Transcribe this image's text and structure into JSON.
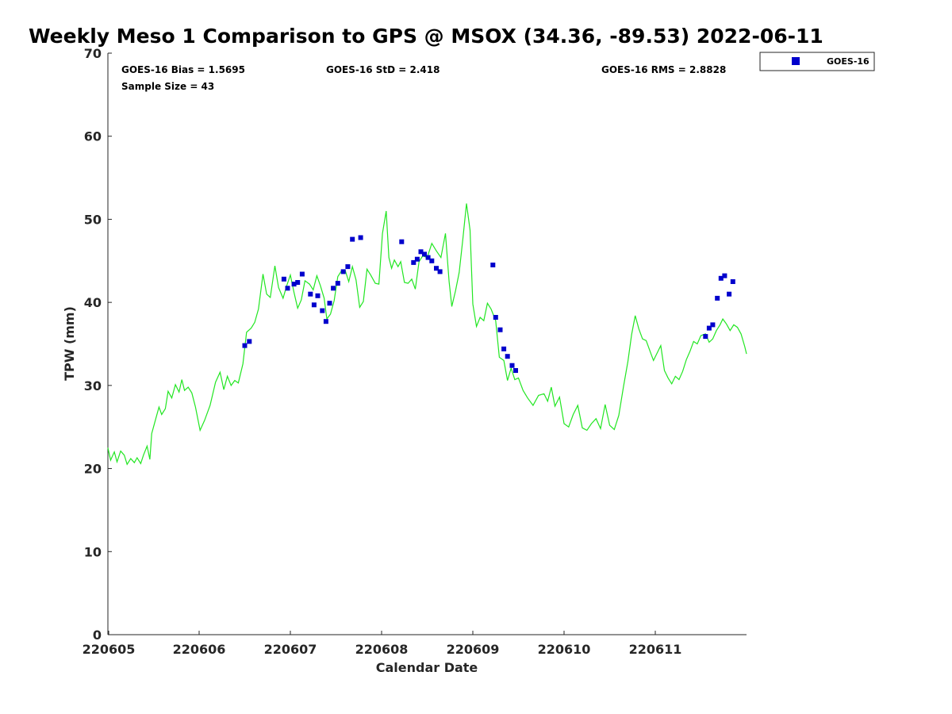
{
  "chart_data": {
    "type": "scatter",
    "title": "Weekly Meso 1 Comparison to GPS @ MSOX (34.36, -89.53) 2022-06-11",
    "xlabel": "Calendar Date",
    "ylabel": "TPW (mm)",
    "xlim": [
      "220605",
      "220612"
    ],
    "ylim": [
      0,
      70
    ],
    "x_ticks": [
      "220605",
      "220606",
      "220607",
      "220608",
      "220609",
      "220610",
      "220611"
    ],
    "y_ticks": [
      0,
      10,
      20,
      30,
      40,
      50,
      60,
      70
    ],
    "grid": false,
    "legend_position": "top-right (outside plot)",
    "stats": {
      "bias": "GOES-16 Bias = 1.5695",
      "std": "GOES-16 StD = 2.418",
      "rms": "GOES-16 RMS = 2.8828",
      "sample_size": "Sample Size = 43"
    },
    "legend": [
      {
        "label": "GOES-16",
        "marker": "square",
        "color": "#0000cc"
      }
    ],
    "line_color": "#22e622",
    "series": [
      {
        "name": "GOES-16",
        "kind": "points",
        "color": "#0000cc",
        "points": [
          [
            1.5,
            34.8
          ],
          [
            1.55,
            35.3
          ],
          [
            1.93,
            42.8
          ],
          [
            1.97,
            41.7
          ],
          [
            2.04,
            42.2
          ],
          [
            2.08,
            42.4
          ],
          [
            2.13,
            43.4
          ],
          [
            2.22,
            41.0
          ],
          [
            2.26,
            39.7
          ],
          [
            2.3,
            40.8
          ],
          [
            2.35,
            39.0
          ],
          [
            2.39,
            37.7
          ],
          [
            2.43,
            39.9
          ],
          [
            2.47,
            41.7
          ],
          [
            2.52,
            42.3
          ],
          [
            2.58,
            43.7
          ],
          [
            2.63,
            44.3
          ],
          [
            2.68,
            47.6
          ],
          [
            2.77,
            47.8
          ],
          [
            3.22,
            47.3
          ],
          [
            3.35,
            44.8
          ],
          [
            3.39,
            45.2
          ],
          [
            3.43,
            46.1
          ],
          [
            3.47,
            45.8
          ],
          [
            3.51,
            45.4
          ],
          [
            3.55,
            45.0
          ],
          [
            3.6,
            44.1
          ],
          [
            3.64,
            43.7
          ],
          [
            4.22,
            44.5
          ],
          [
            4.25,
            38.2
          ],
          [
            4.3,
            36.7
          ],
          [
            4.34,
            34.4
          ],
          [
            4.38,
            33.5
          ],
          [
            4.43,
            32.4
          ],
          [
            4.47,
            31.8
          ],
          [
            6.55,
            35.9
          ],
          [
            6.59,
            36.9
          ],
          [
            6.63,
            37.3
          ],
          [
            6.68,
            40.5
          ],
          [
            6.72,
            42.9
          ],
          [
            6.76,
            43.2
          ],
          [
            6.81,
            41.0
          ],
          [
            6.85,
            42.5
          ]
        ]
      },
      {
        "name": "GPS",
        "kind": "line",
        "color": "#22e622",
        "points": [
          [
            0.0,
            22.5
          ],
          [
            0.03,
            21.0
          ],
          [
            0.07,
            22.0
          ],
          [
            0.1,
            20.8
          ],
          [
            0.14,
            22.1
          ],
          [
            0.18,
            21.6
          ],
          [
            0.21,
            20.5
          ],
          [
            0.25,
            21.2
          ],
          [
            0.29,
            20.7
          ],
          [
            0.32,
            21.3
          ],
          [
            0.36,
            20.6
          ],
          [
            0.39,
            21.6
          ],
          [
            0.43,
            22.7
          ],
          [
            0.46,
            21.1
          ],
          [
            0.48,
            24.2
          ],
          [
            0.52,
            25.8
          ],
          [
            0.56,
            27.4
          ],
          [
            0.59,
            26.5
          ],
          [
            0.63,
            27.2
          ],
          [
            0.66,
            29.3
          ],
          [
            0.7,
            28.5
          ],
          [
            0.74,
            30.1
          ],
          [
            0.78,
            29.2
          ],
          [
            0.81,
            30.7
          ],
          [
            0.84,
            29.4
          ],
          [
            0.88,
            29.8
          ],
          [
            0.92,
            29.1
          ],
          [
            0.96,
            27.4
          ],
          [
            1.01,
            24.6
          ],
          [
            1.06,
            25.8
          ],
          [
            1.12,
            27.6
          ],
          [
            1.18,
            30.4
          ],
          [
            1.23,
            31.6
          ],
          [
            1.27,
            29.5
          ],
          [
            1.31,
            31.1
          ],
          [
            1.35,
            30.0
          ],
          [
            1.39,
            30.6
          ],
          [
            1.43,
            30.3
          ],
          [
            1.48,
            32.6
          ],
          [
            1.52,
            36.4
          ],
          [
            1.57,
            36.9
          ],
          [
            1.61,
            37.6
          ],
          [
            1.65,
            39.2
          ],
          [
            1.7,
            43.4
          ],
          [
            1.74,
            41.0
          ],
          [
            1.78,
            40.6
          ],
          [
            1.83,
            44.4
          ],
          [
            1.87,
            41.8
          ],
          [
            1.92,
            40.5
          ],
          [
            1.96,
            42.0
          ],
          [
            2.0,
            43.3
          ],
          [
            2.04,
            41.2
          ],
          [
            2.08,
            39.3
          ],
          [
            2.12,
            40.3
          ],
          [
            2.16,
            42.6
          ],
          [
            2.21,
            42.2
          ],
          [
            2.25,
            41.5
          ],
          [
            2.29,
            43.2
          ],
          [
            2.33,
            42.0
          ],
          [
            2.37,
            40.5
          ],
          [
            2.4,
            38.0
          ],
          [
            2.44,
            38.6
          ],
          [
            2.48,
            40.2
          ],
          [
            2.52,
            43.1
          ],
          [
            2.56,
            43.8
          ],
          [
            2.6,
            43.9
          ],
          [
            2.64,
            42.5
          ],
          [
            2.68,
            44.3
          ],
          [
            2.72,
            42.7
          ],
          [
            2.76,
            39.4
          ],
          [
            2.8,
            40.1
          ],
          [
            2.84,
            44.0
          ],
          [
            2.88,
            43.3
          ],
          [
            2.93,
            42.3
          ],
          [
            2.97,
            42.2
          ],
          [
            3.01,
            48.3
          ],
          [
            3.05,
            51.0
          ],
          [
            3.08,
            45.4
          ],
          [
            3.11,
            44.1
          ],
          [
            3.14,
            45.1
          ],
          [
            3.18,
            44.3
          ],
          [
            3.21,
            44.9
          ],
          [
            3.25,
            42.4
          ],
          [
            3.29,
            42.3
          ],
          [
            3.33,
            42.8
          ],
          [
            3.37,
            41.6
          ],
          [
            3.41,
            44.9
          ],
          [
            3.45,
            45.6
          ],
          [
            3.5,
            45.4
          ],
          [
            3.55,
            47.1
          ],
          [
            3.6,
            46.2
          ],
          [
            3.65,
            45.4
          ],
          [
            3.7,
            48.3
          ],
          [
            3.74,
            42.5
          ],
          [
            3.77,
            39.5
          ],
          [
            3.81,
            41.4
          ],
          [
            3.85,
            43.6
          ],
          [
            3.89,
            47.6
          ],
          [
            3.93,
            51.9
          ],
          [
            3.97,
            48.7
          ],
          [
            4.0,
            39.8
          ],
          [
            4.04,
            37.1
          ],
          [
            4.08,
            38.2
          ],
          [
            4.12,
            37.8
          ],
          [
            4.16,
            39.9
          ],
          [
            4.2,
            39.2
          ],
          [
            4.25,
            37.8
          ],
          [
            4.29,
            33.4
          ],
          [
            4.34,
            33.0
          ],
          [
            4.38,
            30.6
          ],
          [
            4.42,
            32.1
          ],
          [
            4.46,
            30.7
          ],
          [
            4.5,
            30.9
          ],
          [
            4.55,
            29.4
          ],
          [
            4.6,
            28.5
          ],
          [
            4.66,
            27.6
          ],
          [
            4.72,
            28.8
          ],
          [
            4.78,
            29.0
          ],
          [
            4.82,
            28.1
          ],
          [
            4.86,
            29.8
          ],
          [
            4.9,
            27.5
          ],
          [
            4.95,
            28.6
          ],
          [
            5.0,
            25.4
          ],
          [
            5.05,
            25.0
          ],
          [
            5.1,
            26.5
          ],
          [
            5.15,
            27.6
          ],
          [
            5.2,
            24.9
          ],
          [
            5.25,
            24.6
          ],
          [
            5.3,
            25.4
          ],
          [
            5.35,
            26.0
          ],
          [
            5.4,
            24.8
          ],
          [
            5.45,
            27.7
          ],
          [
            5.5,
            25.2
          ],
          [
            5.55,
            24.7
          ],
          [
            5.6,
            26.4
          ],
          [
            5.65,
            29.8
          ],
          [
            5.7,
            32.9
          ],
          [
            5.74,
            36.1
          ],
          [
            5.78,
            38.4
          ],
          [
            5.82,
            36.8
          ],
          [
            5.86,
            35.6
          ],
          [
            5.9,
            35.4
          ],
          [
            5.94,
            34.2
          ],
          [
            5.98,
            33.0
          ],
          [
            6.02,
            33.9
          ],
          [
            6.06,
            34.8
          ],
          [
            6.1,
            31.8
          ],
          [
            6.14,
            30.9
          ],
          [
            6.18,
            30.2
          ],
          [
            6.22,
            31.1
          ],
          [
            6.26,
            30.7
          ],
          [
            6.3,
            31.7
          ],
          [
            6.34,
            33.1
          ],
          [
            6.38,
            34.1
          ],
          [
            6.42,
            35.3
          ],
          [
            6.46,
            35.0
          ],
          [
            6.5,
            36.0
          ],
          [
            6.55,
            36.2
          ],
          [
            6.59,
            35.2
          ],
          [
            6.63,
            35.6
          ],
          [
            6.67,
            36.6
          ],
          [
            6.71,
            37.3
          ],
          [
            6.74,
            38.0
          ],
          [
            6.78,
            37.4
          ],
          [
            6.82,
            36.6
          ],
          [
            6.86,
            37.3
          ],
          [
            6.9,
            37.0
          ],
          [
            6.94,
            36.2
          ],
          [
            6.98,
            34.7
          ],
          [
            7.0,
            33.8
          ]
        ]
      }
    ]
  }
}
